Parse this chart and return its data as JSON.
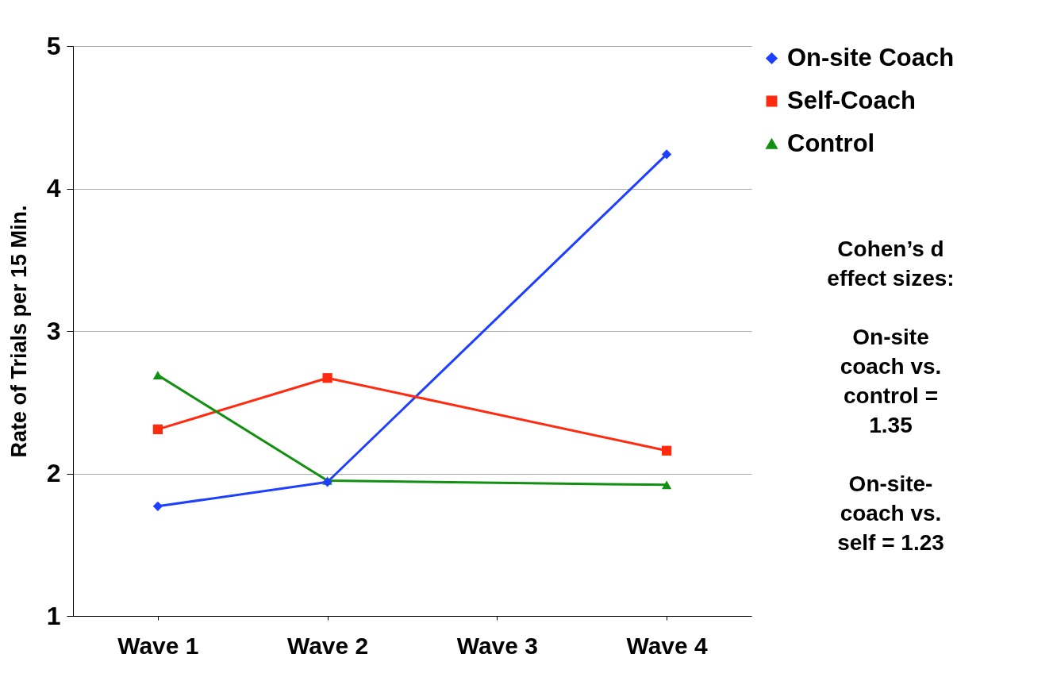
{
  "chart_data": {
    "type": "line",
    "ylabel": "Rate of Trials per 15 Min.",
    "categories": [
      "Wave 1",
      "Wave 2",
      "Wave 3",
      "Wave 4"
    ],
    "series": [
      {
        "name": "On-site Coach",
        "color": "#1f3fff",
        "marker": "diamond",
        "values": [
          1.77,
          1.94,
          null,
          4.24
        ]
      },
      {
        "name": "Self-Coach",
        "color": "#ff2a10",
        "marker": "square",
        "values": [
          2.31,
          2.67,
          null,
          2.16
        ]
      },
      {
        "name": "Control",
        "color": "#119011",
        "marker": "triangle",
        "values": [
          2.69,
          1.95,
          null,
          1.92
        ]
      }
    ],
    "ylim": [
      1,
      5
    ],
    "yticks": [
      1,
      2,
      3,
      4,
      5
    ],
    "grid": "y",
    "legend": "top right",
    "annotations": [
      "Cohen’s d effect sizes:",
      "On-site coach vs. control = 1.35",
      "On-site-coach vs. self = 1.23"
    ]
  }
}
